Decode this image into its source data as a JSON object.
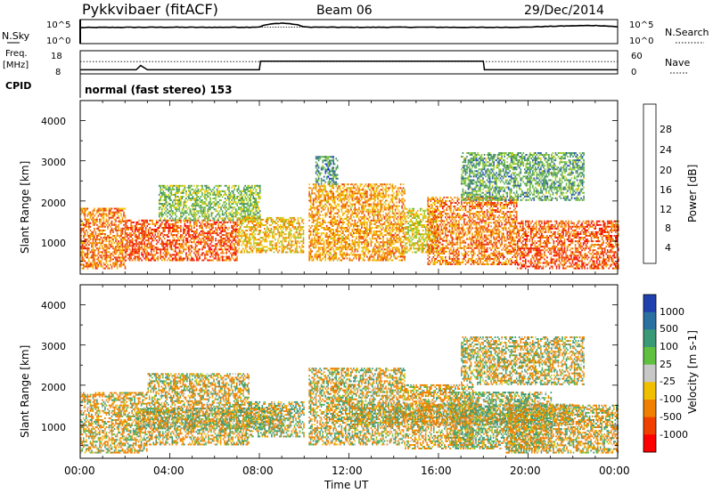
{
  "header": {
    "station": "Pykkvibaer (fitACF)",
    "beam": "Beam 06",
    "date": "29/Dec/2014"
  },
  "panels": {
    "nsky": {
      "label": "N.Sky",
      "left_ticks": [
        "10^5",
        "10^0"
      ],
      "right_label": "N.Search",
      "right_ticks": [
        "10^5",
        "10^0"
      ]
    },
    "freq": {
      "label_line1": "Freq.",
      "label_line2": "[MHz]",
      "left_ticks": [
        "18",
        "8"
      ],
      "right_label": "Nave",
      "right_ticks": [
        "60",
        "0"
      ]
    },
    "cpid": {
      "label": "CPID",
      "text": "normal (fast stereo) 153"
    }
  },
  "x_axis": {
    "label": "Time UT",
    "ticks": [
      "00:00",
      "04:00",
      "08:00",
      "12:00",
      "16:00",
      "20:00",
      "00:00"
    ]
  },
  "power_panel": {
    "ylabel": "Slant Range [km]",
    "yticks": [
      "4000",
      "3000",
      "2000",
      "1000"
    ],
    "colorbar_label": "Power [dB]",
    "colorbar_ticks": [
      "28",
      "24",
      "20",
      "16",
      "12",
      "8",
      "4"
    ],
    "colorbar_colors": [
      "#0000ff",
      "#2650b4",
      "#3f8a70",
      "#5ab04a",
      "#9acd2e",
      "#f0c800",
      "#f5a000",
      "#f07000",
      "#e83010",
      "#ff0000"
    ]
  },
  "velocity_panel": {
    "ylabel": "Slant Range [km]",
    "yticks": [
      "4000",
      "3000",
      "2000",
      "1000"
    ],
    "colorbar_label": "Velocity [m s-1]",
    "colorbar_ticks": [
      "1000",
      "500",
      "100",
      "25",
      "-25",
      "-100",
      "-500",
      "-1000"
    ],
    "colorbar_colors": [
      "#2040b0",
      "#2a70a0",
      "#3a9a78",
      "#60c040",
      "#c8c8c8",
      "#f0c000",
      "#f08000",
      "#f04000",
      "#ff0000"
    ]
  },
  "chart_data": [
    {
      "type": "line",
      "title": "",
      "ylabel": "N.Sky",
      "y2label": "N.Search",
      "x": [
        0,
        2,
        4,
        6,
        8,
        9,
        10,
        12,
        14,
        16,
        18,
        20,
        22,
        23,
        24
      ],
      "series": [
        {
          "name": "N.Sky",
          "values": [
            3500,
            4000,
            4200,
            4000,
            4500,
            40000,
            4500,
            4000,
            4300,
            4200,
            3800,
            4500,
            9000,
            11000,
            5000
          ]
        },
        {
          "name": "N.Search",
          "values": [
            3800,
            4200,
            4300,
            4200,
            4600,
            4600,
            4700,
            4200,
            4400,
            4300,
            4000,
            4800,
            9500,
            12000,
            5200
          ]
        }
      ],
      "ylim": [
        1,
        100000
      ]
    },
    {
      "type": "line",
      "title": "",
      "ylabel": "Freq. [MHz]",
      "y2label": "Nave",
      "x": [
        0,
        2.5,
        2.7,
        3.0,
        8.0,
        8.05,
        18.0,
        18.05,
        24.0
      ],
      "series": [
        {
          "name": "Freq.",
          "values": [
            9.5,
            9.5,
            11.5,
            9.5,
            9.5,
            13.5,
            13.5,
            9.5,
            9.5
          ]
        },
        {
          "name": "Nave",
          "values": [
            32,
            32,
            32,
            32,
            32,
            32,
            32,
            32,
            32
          ]
        }
      ],
      "ylim": [
        8,
        18
      ],
      "y2lim": [
        0,
        60
      ]
    },
    {
      "type": "heatmap",
      "title": "",
      "xlabel": "Time UT",
      "ylabel": "Slant Range [km]",
      "colorbar": "Power [dB]",
      "xlim": [
        0,
        24
      ],
      "ylim": [
        180,
        4500
      ],
      "zlim": [
        0,
        30
      ],
      "regions": [
        {
          "t0": 0.0,
          "t1": 2.0,
          "r0": 300,
          "r1": 1800,
          "z": 22
        },
        {
          "t0": 2.0,
          "t1": 7.0,
          "r0": 500,
          "r1": 1500,
          "z": 24
        },
        {
          "t0": 3.5,
          "t1": 8.0,
          "r0": 1500,
          "r1": 2400,
          "z": 12
        },
        {
          "t0": 7.0,
          "t1": 10.0,
          "r0": 700,
          "r1": 1600,
          "z": 18
        },
        {
          "t0": 10.2,
          "t1": 14.5,
          "r0": 500,
          "r1": 2400,
          "z": 20
        },
        {
          "t0": 10.5,
          "t1": 11.5,
          "r0": 2400,
          "r1": 3100,
          "z": 8
        },
        {
          "t0": 14.5,
          "t1": 16.0,
          "r0": 700,
          "r1": 1800,
          "z": 16
        },
        {
          "t0": 15.5,
          "t1": 19.5,
          "r0": 400,
          "r1": 2100,
          "z": 22
        },
        {
          "t0": 19.5,
          "t1": 24.0,
          "r0": 300,
          "r1": 1500,
          "z": 24
        },
        {
          "t0": 17.0,
          "t1": 22.5,
          "r0": 2000,
          "r1": 3200,
          "z": 10
        }
      ]
    },
    {
      "type": "heatmap",
      "title": "",
      "xlabel": "Time UT",
      "ylabel": "Slant Range [km]",
      "colorbar": "Velocity [m s-1]",
      "xlim": [
        0,
        24
      ],
      "ylim": [
        180,
        4500
      ],
      "zlim": [
        -1000,
        1000
      ],
      "regions": [
        {
          "t0": 0.0,
          "t1": 3.0,
          "r0": 300,
          "r1": 1800,
          "z": -120
        },
        {
          "t0": 3.0,
          "t1": 7.5,
          "r0": 500,
          "r1": 2300,
          "z": -80
        },
        {
          "t0": 2.5,
          "t1": 9.0,
          "r0": 900,
          "r1": 1400,
          "z": 0
        },
        {
          "t0": 7.5,
          "t1": 10.0,
          "r0": 700,
          "r1": 1600,
          "z": 40
        },
        {
          "t0": 10.2,
          "t1": 14.5,
          "r0": 500,
          "r1": 2400,
          "z": -60
        },
        {
          "t0": 12.0,
          "t1": 22.0,
          "r0": 1000,
          "r1": 1500,
          "z": 0
        },
        {
          "t0": 14.5,
          "t1": 17.5,
          "r0": 400,
          "r1": 2000,
          "z": -150
        },
        {
          "t0": 16.5,
          "t1": 21.0,
          "r0": 400,
          "r1": 1800,
          "z": 60
        },
        {
          "t0": 19.0,
          "t1": 24.0,
          "r0": 300,
          "r1": 1500,
          "z": -100
        },
        {
          "t0": 17.0,
          "t1": 22.5,
          "r0": 2000,
          "r1": 3200,
          "z": -40
        }
      ]
    }
  ]
}
